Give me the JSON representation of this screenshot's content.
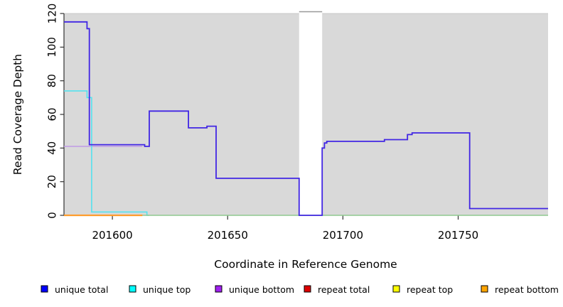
{
  "chart_data": {
    "type": "line",
    "title": "",
    "xlabel": "Coordinate in Reference Genome",
    "ylabel": "Read Coverage Depth",
    "xlim": [
      201579,
      201789
    ],
    "ylim": [
      0,
      120
    ],
    "x_ticks": [
      201600,
      201650,
      201700,
      201750
    ],
    "y_ticks": [
      0,
      20,
      40,
      60,
      80,
      100,
      120
    ],
    "grid": false,
    "panel_background": "#d9d9d9",
    "coverage_gap": {
      "x_start": 201681,
      "x_end": 201691,
      "fill": "#ffffff",
      "top_border": "#999999"
    },
    "series": [
      {
        "name": "unique bottom",
        "line_color": "#c09ae6",
        "line_width": 1.6,
        "points": [
          [
            201579,
            41
          ],
          [
            201613,
            41
          ]
        ]
      },
      {
        "name": "unique top",
        "line_color": "#55e2ee",
        "line_width": 1.6,
        "points": [
          [
            201579,
            74
          ],
          [
            201589,
            74
          ],
          [
            201589,
            70
          ],
          [
            201591,
            70
          ],
          [
            201591,
            2
          ],
          [
            201615,
            2
          ],
          [
            201615,
            0
          ],
          [
            201616,
            0
          ]
        ]
      },
      {
        "name": "baseline-unlabeled-green",
        "line_color": "#8fc98f",
        "line_width": 1.5,
        "points": [
          [
            201579,
            0
          ],
          [
            201789,
            0
          ]
        ]
      },
      {
        "name": "repeat bottom",
        "line_color": "#ff9d2e",
        "line_width": 2.2,
        "points": [
          [
            201579,
            0
          ],
          [
            201613,
            0
          ]
        ]
      },
      {
        "name": "unique total",
        "line_color": "#4126e4",
        "line_width": 1.8,
        "points": [
          [
            201579,
            115
          ],
          [
            201589,
            115
          ],
          [
            201589,
            111
          ],
          [
            201590,
            111
          ],
          [
            201590,
            42
          ],
          [
            201614,
            42
          ],
          [
            201614,
            41
          ],
          [
            201616,
            41
          ],
          [
            201616,
            62
          ],
          [
            201633,
            62
          ],
          [
            201633,
            52
          ],
          [
            201641,
            52
          ],
          [
            201641,
            53
          ],
          [
            201645,
            53
          ],
          [
            201645,
            22
          ],
          [
            201681,
            22
          ],
          [
            201681,
            0
          ],
          [
            201691,
            0
          ],
          [
            201691,
            40
          ],
          [
            201692,
            40
          ],
          [
            201692,
            43
          ],
          [
            201693,
            43
          ],
          [
            201693,
            44
          ],
          [
            201718,
            44
          ],
          [
            201718,
            45
          ],
          [
            201728,
            45
          ],
          [
            201728,
            48
          ],
          [
            201730,
            48
          ],
          [
            201730,
            49
          ],
          [
            201755,
            49
          ],
          [
            201755,
            4
          ],
          [
            201789,
            4
          ]
        ]
      }
    ],
    "legend": {
      "position": "bottom",
      "entries": [
        {
          "label": "unique total",
          "color": "#0000ff"
        },
        {
          "label": "unique top",
          "color": "#00ffff"
        },
        {
          "label": "unique bottom",
          "color": "#a020f0"
        },
        {
          "label": "repeat total",
          "color": "#dd0000"
        },
        {
          "label": "repeat top",
          "color": "#ffff00"
        },
        {
          "label": "repeat bottom",
          "color": "#ffa500"
        }
      ]
    }
  }
}
